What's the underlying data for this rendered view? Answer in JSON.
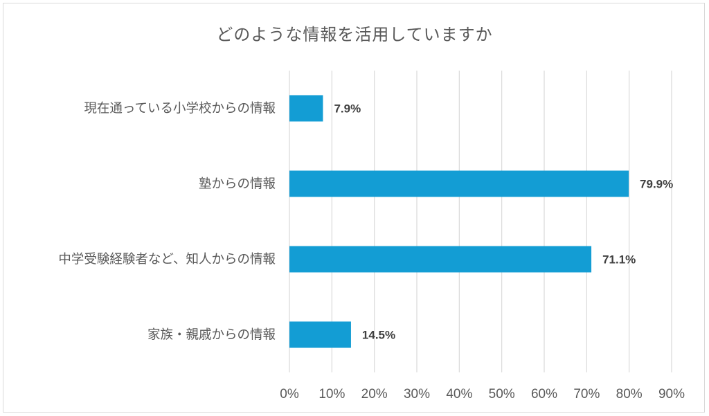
{
  "chart_data": {
    "type": "bar",
    "orientation": "horizontal",
    "title": "どのような情報を活用していますか",
    "categories": [
      "現在通っている小学校からの情報",
      "塾からの情報",
      "中学受験経験者など、知人からの情報",
      "家族・親戚からの情報"
    ],
    "values": [
      7.9,
      79.9,
      71.1,
      14.5
    ],
    "value_labels": [
      "7.9%",
      "79.9%",
      "71.1%",
      "14.5%"
    ],
    "xlim": [
      0,
      90
    ],
    "x_ticks": [
      0,
      10,
      20,
      30,
      40,
      50,
      60,
      70,
      80,
      90
    ],
    "x_tick_labels": [
      "0%",
      "10%",
      "20%",
      "30%",
      "40%",
      "50%",
      "60%",
      "70%",
      "80%",
      "90%"
    ],
    "grid": true,
    "legend": "none",
    "bar_color": "#139DD4"
  }
}
